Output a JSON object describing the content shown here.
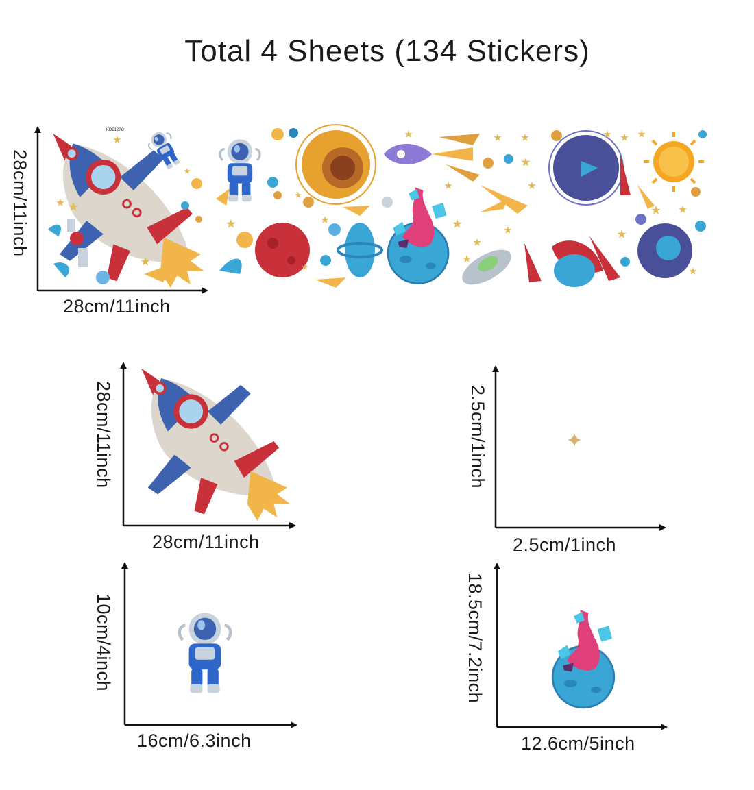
{
  "title": "Total 4 Sheets (134 Stickers)",
  "sheet": {
    "width_label": "28cm/11inch",
    "height_label": "28cm/11inch",
    "sheet_code": "KD2127C"
  },
  "samples": [
    {
      "name": "rocket",
      "width_label": "28cm/11inch",
      "height_label": "28cm/11inch"
    },
    {
      "name": "star",
      "width_label": "2.5cm/1inch",
      "height_label": "2.5cm/1inch"
    },
    {
      "name": "astronaut",
      "width_label": "16cm/6.3inch",
      "height_label": "10cm/4inch"
    },
    {
      "name": "planet",
      "width_label": "12.6cm/5inch",
      "height_label": "18.5cm/7.2inch"
    }
  ],
  "colors": {
    "rocket_red": "#c8303a",
    "rocket_blue": "#3d63b0",
    "rocket_body": "#dcd6cc",
    "flame": "#f2b54a",
    "star_gold": "#d8b26a",
    "planet_blue": "#3aa6d6",
    "magma_pink": "#e0407a",
    "sun_orange": "#f5a623"
  }
}
